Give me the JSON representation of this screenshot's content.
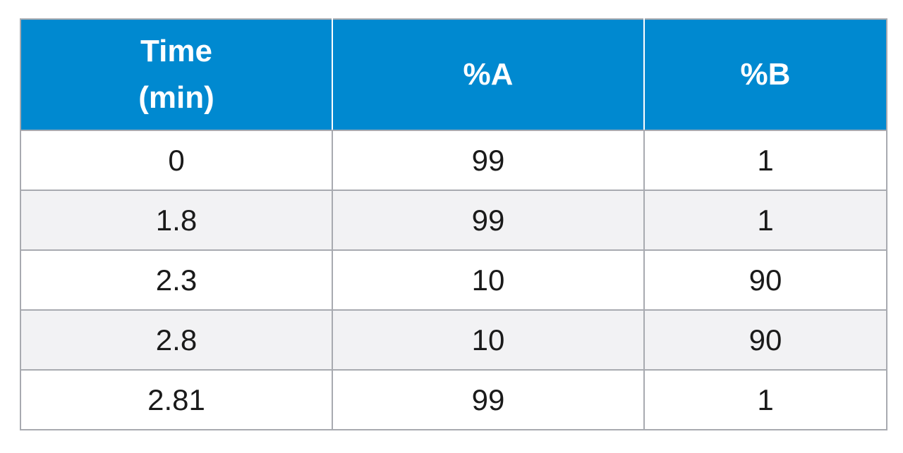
{
  "colors": {
    "header_bg": "#0089d0",
    "header_text": "#ffffff",
    "row_alt_bg": "#f2f2f4",
    "border": "#a8aab0"
  },
  "table": {
    "headers": [
      {
        "lines": [
          "Time",
          "(min)"
        ]
      },
      {
        "lines": [
          "%A"
        ]
      },
      {
        "lines": [
          "%B"
        ]
      }
    ],
    "rows": [
      [
        "0",
        "99",
        "1"
      ],
      [
        "1.8",
        "99",
        "1"
      ],
      [
        "2.3",
        "10",
        "90"
      ],
      [
        "2.8",
        "10",
        "90"
      ],
      [
        "2.81",
        "99",
        "1"
      ]
    ]
  }
}
